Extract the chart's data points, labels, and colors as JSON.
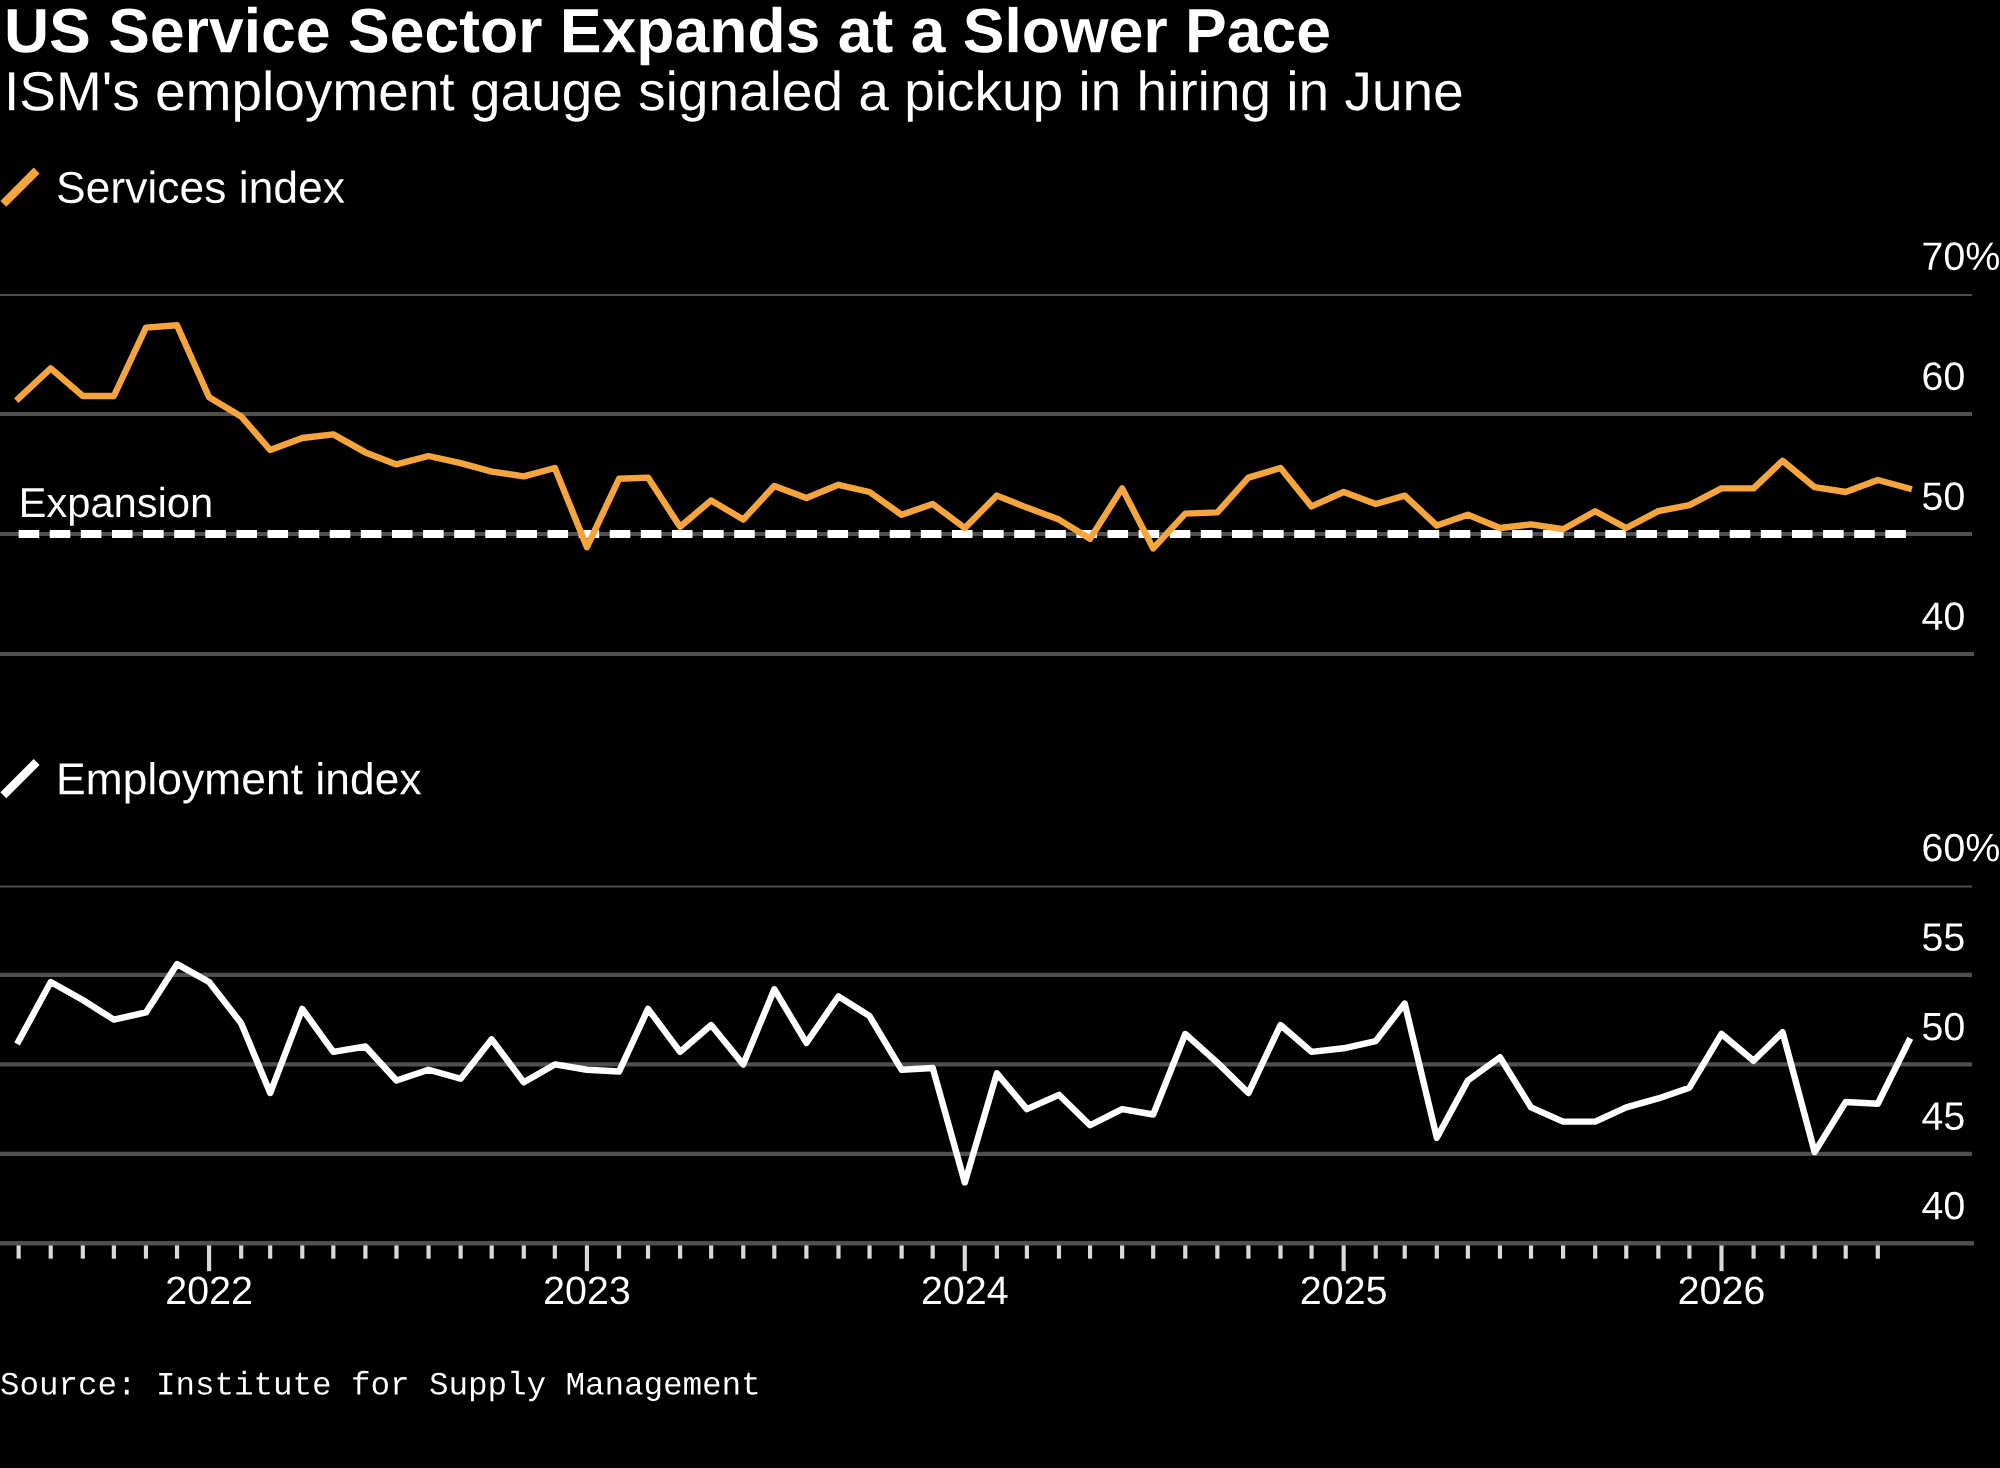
{
  "chart_data": [
    {
      "type": "line",
      "title": "US Service Sector Expands at a Slower Pace",
      "subtitle": "ISM's employment gauge signaled a pickup in hiring in June",
      "x": [
        "2021-07",
        "2021-08",
        "2021-09",
        "2021-10",
        "2021-11",
        "2021-12",
        "2022-01",
        "2022-02",
        "2022-03",
        "2022-04",
        "2022-05",
        "2022-06",
        "2022-07",
        "2022-08",
        "2022-09",
        "2022-10",
        "2022-11",
        "2022-12",
        "2023-01",
        "2023-02",
        "2023-03",
        "2023-04",
        "2023-05",
        "2023-06",
        "2023-07",
        "2023-08",
        "2023-09",
        "2023-10",
        "2023-11",
        "2023-12",
        "2024-01",
        "2024-02",
        "2024-03",
        "2024-04",
        "2024-05",
        "2024-06",
        "2024-07",
        "2024-08",
        "2024-09",
        "2024-10",
        "2024-11",
        "2024-12",
        "2025-01",
        "2025-02",
        "2025-03",
        "2025-04",
        "2025-05",
        "2025-06",
        "2025-07",
        "2025-08",
        "2025-09",
        "2025-10",
        "2025-11",
        "2025-12",
        "2026-01",
        "2026-02",
        "2026-03",
        "2026-04",
        "2026-05",
        "2026-06",
        "2026-07"
      ],
      "series": [
        {
          "name": "Services index",
          "color": "#f6a43c",
          "values": [
            61.3,
            63.8,
            61.5,
            61.5,
            67.2,
            67.4,
            61.4,
            59.8,
            57.0,
            58.0,
            58.3,
            56.8,
            55.8,
            56.5,
            55.9,
            55.2,
            54.8,
            55.5,
            48.9,
            54.6,
            54.7,
            50.6,
            52.8,
            51.2,
            54.0,
            53.0,
            54.1,
            53.5,
            51.6,
            52.5,
            50.5,
            53.2,
            52.2,
            51.2,
            49.6,
            53.8,
            48.8,
            51.7,
            51.8,
            54.7,
            55.5,
            52.3,
            53.5,
            52.5,
            53.2,
            50.7,
            51.6,
            50.5,
            50.8,
            50.4,
            51.9,
            50.5,
            51.9,
            52.4,
            53.8,
            53.8,
            56.1,
            53.9,
            53.5,
            54.5,
            53.8
          ]
        }
      ],
      "xlim": [
        "2021-06-13",
        "2026-08-31"
      ],
      "ylim": [
        40,
        70
      ],
      "yticks": [
        40,
        50,
        60,
        {
          "value": 70,
          "label": "70%"
        }
      ],
      "ref_lines": [
        {
          "axis": "y",
          "value": 50,
          "label": "Expansion",
          "color": "#ffffff",
          "line_style": "dashed"
        }
      ],
      "grid": "y",
      "legend": "top left",
      "tick_labels": "y"
    },
    {
      "type": "line",
      "x": [
        "2021-07",
        "2021-08",
        "2021-09",
        "2021-10",
        "2021-11",
        "2021-12",
        "2022-01",
        "2022-02",
        "2022-03",
        "2022-04",
        "2022-05",
        "2022-06",
        "2022-07",
        "2022-08",
        "2022-09",
        "2022-10",
        "2022-11",
        "2022-12",
        "2023-01",
        "2023-02",
        "2023-03",
        "2023-04",
        "2023-05",
        "2023-06",
        "2023-07",
        "2023-08",
        "2023-09",
        "2023-10",
        "2023-11",
        "2023-12",
        "2024-01",
        "2024-02",
        "2024-03",
        "2024-04",
        "2024-05",
        "2024-06",
        "2024-07",
        "2024-08",
        "2024-09",
        "2024-10",
        "2024-11",
        "2024-12",
        "2025-01",
        "2025-02",
        "2025-03",
        "2025-04",
        "2025-05",
        "2025-06",
        "2025-07",
        "2025-08",
        "2025-09",
        "2025-10",
        "2025-11",
        "2025-12",
        "2026-01",
        "2026-02",
        "2026-03",
        "2026-04",
        "2026-05",
        "2026-06",
        "2026-07"
      ],
      "series": [
        {
          "name": "Employment index",
          "color": "#ffffff",
          "values": [
            51.3,
            54.6,
            53.6,
            52.5,
            52.9,
            55.6,
            54.6,
            52.3,
            48.4,
            53.1,
            50.7,
            51.0,
            49.1,
            49.7,
            49.2,
            51.4,
            49.0,
            50.0,
            49.7,
            49.6,
            53.1,
            50.7,
            52.2,
            50.0,
            54.2,
            51.2,
            53.8,
            52.7,
            49.7,
            49.8,
            43.4,
            49.5,
            47.5,
            48.3,
            46.6,
            47.5,
            47.2,
            51.7,
            50.1,
            48.4,
            52.2,
            50.7,
            50.9,
            51.3,
            53.4,
            45.9,
            49.1,
            50.4,
            47.6,
            46.8,
            46.8,
            47.6,
            48.1,
            48.7,
            51.7,
            50.2,
            51.8,
            45.1,
            47.9,
            47.8,
            51.3
          ]
        }
      ],
      "xlim": [
        "2021-06-13",
        "2026-08-31"
      ],
      "xticks": [
        {
          "value": "2021-07",
          "label": null
        },
        {
          "value": "2021-08",
          "label": null
        },
        {
          "value": "2021-09",
          "label": null
        },
        {
          "value": "2021-10",
          "label": null
        },
        {
          "value": "2021-11",
          "label": null
        },
        {
          "value": "2021-12",
          "label": null
        },
        {
          "value": "2022-01",
          "label": "2022"
        },
        {
          "value": "2022-02",
          "label": null
        },
        {
          "value": "2022-03",
          "label": null
        },
        {
          "value": "2022-04",
          "label": null
        },
        {
          "value": "2022-05",
          "label": null
        },
        {
          "value": "2022-06",
          "label": null
        },
        {
          "value": "2022-07",
          "label": null
        },
        {
          "value": "2022-08",
          "label": null
        },
        {
          "value": "2022-09",
          "label": null
        },
        {
          "value": "2022-10",
          "label": null
        },
        {
          "value": "2022-11",
          "label": null
        },
        {
          "value": "2022-12",
          "label": null
        },
        {
          "value": "2023-01",
          "label": "2023"
        },
        {
          "value": "2023-02",
          "label": null
        },
        {
          "value": "2023-03",
          "label": null
        },
        {
          "value": "2023-04",
          "label": null
        },
        {
          "value": "2023-05",
          "label": null
        },
        {
          "value": "2023-06",
          "label": null
        },
        {
          "value": "2023-07",
          "label": null
        },
        {
          "value": "2023-08",
          "label": null
        },
        {
          "value": "2023-09",
          "label": null
        },
        {
          "value": "2023-10",
          "label": null
        },
        {
          "value": "2023-11",
          "label": null
        },
        {
          "value": "2023-12",
          "label": null
        },
        {
          "value": "2024-01",
          "label": "2024"
        },
        {
          "value": "2024-02",
          "label": null
        },
        {
          "value": "2024-03",
          "label": null
        },
        {
          "value": "2024-04",
          "label": null
        },
        {
          "value": "2024-05",
          "label": null
        },
        {
          "value": "2024-06",
          "label": null
        },
        {
          "value": "2024-07",
          "label": null
        },
        {
          "value": "2024-08",
          "label": null
        },
        {
          "value": "2024-09",
          "label": null
        },
        {
          "value": "2024-10",
          "label": null
        },
        {
          "value": "2024-11",
          "label": null
        },
        {
          "value": "2024-12",
          "label": null
        },
        {
          "value": "2025-01",
          "label": "2025"
        },
        {
          "value": "2025-02",
          "label": null
        },
        {
          "value": "2025-03",
          "label": null
        },
        {
          "value": "2025-04",
          "label": null
        },
        {
          "value": "2025-05",
          "label": null
        },
        {
          "value": "2025-06",
          "label": null
        },
        {
          "value": "2025-07",
          "label": null
        },
        {
          "value": "2025-08",
          "label": null
        },
        {
          "value": "2025-09",
          "label": null
        },
        {
          "value": "2025-10",
          "label": null
        },
        {
          "value": "2025-11",
          "label": null
        },
        {
          "value": "2025-12",
          "label": null
        },
        {
          "value": "2026-01",
          "label": "2026"
        },
        {
          "value": "2026-02",
          "label": null
        },
        {
          "value": "2026-03",
          "label": null
        },
        {
          "value": "2026-04",
          "label": null
        },
        {
          "value": "2026-05",
          "label": null
        },
        {
          "value": "2026-06",
          "label": null
        }
      ],
      "ylim": [
        40,
        60
      ],
      "yticks": [
        40,
        45,
        50,
        55,
        {
          "value": 60,
          "label": "60%"
        }
      ],
      "grid": "y",
      "legend": "top left",
      "annotations": [
        "Source: Institute for Supply Management"
      ]
    }
  ]
}
